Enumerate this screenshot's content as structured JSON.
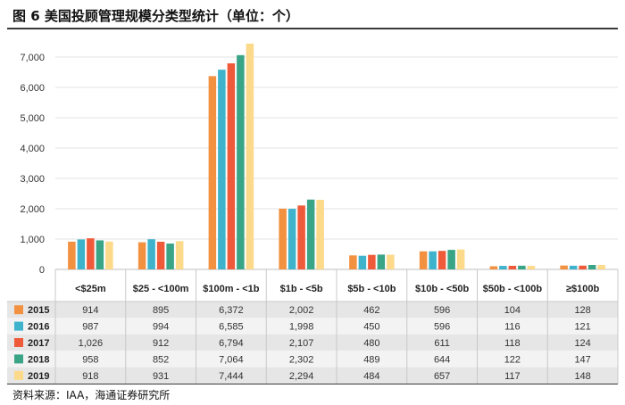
{
  "figure": {
    "title": "图 6  美国投顾管理规模分类型统计（单位：个）",
    "source": "资料来源：IAA，海通证券研究所"
  },
  "chart_data": {
    "type": "bar",
    "title": "",
    "xlabel": "",
    "ylabel": "",
    "ylim": [
      0,
      7500
    ],
    "yticks": [
      0,
      1000,
      2000,
      3000,
      4000,
      5000,
      6000,
      7000
    ],
    "ytick_labels": [
      "0",
      "1,000",
      "2,000",
      "3,000",
      "4,000",
      "5,000",
      "6,000",
      "7,000"
    ],
    "grid": true,
    "legend": "data-table-left",
    "categories": [
      "<$25m",
      "$25 - <100m",
      "$100m - <1b",
      "$1b - <5b",
      "$5b - <10b",
      "$10b - <50b",
      "$50b - <100b",
      "≥$100b"
    ],
    "series": [
      {
        "name": "2015",
        "color": "#F29140",
        "values": [
          914,
          895,
          6372,
          2002,
          462,
          596,
          104,
          128
        ],
        "labels": [
          "914",
          "895",
          "6,372",
          "2,002",
          "462",
          "596",
          "104",
          "128"
        ]
      },
      {
        "name": "2016",
        "color": "#3FB3CC",
        "values": [
          987,
          994,
          6585,
          1998,
          450,
          596,
          116,
          121
        ],
        "labels": [
          "987",
          "994",
          "6,585",
          "1,998",
          "450",
          "596",
          "116",
          "121"
        ]
      },
      {
        "name": "2017",
        "color": "#EF5B3A",
        "values": [
          1026,
          912,
          6794,
          2107,
          480,
          611,
          118,
          124
        ],
        "labels": [
          "1,026",
          "912",
          "6,794",
          "2,107",
          "480",
          "611",
          "118",
          "124"
        ]
      },
      {
        "name": "2018",
        "color": "#3AA487",
        "values": [
          958,
          852,
          7064,
          2302,
          489,
          644,
          122,
          147
        ],
        "labels": [
          "958",
          "852",
          "7,064",
          "2,302",
          "489",
          "644",
          "122",
          "147"
        ]
      },
      {
        "name": "2019",
        "color": "#FDD98A",
        "values": [
          918,
          931,
          7444,
          2294,
          484,
          657,
          117,
          148
        ],
        "labels": [
          "918",
          "931",
          "7,444",
          "2,294",
          "484",
          "657",
          "117",
          "148"
        ]
      }
    ]
  }
}
